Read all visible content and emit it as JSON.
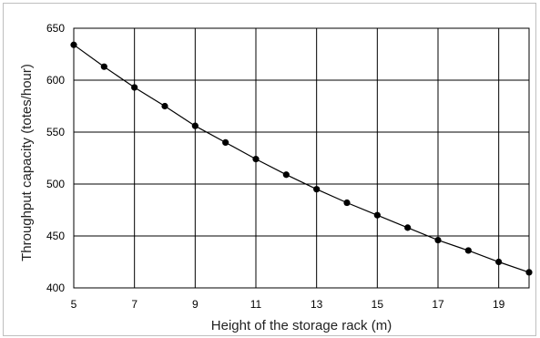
{
  "chart_data": {
    "type": "line",
    "title": "",
    "xlabel": "Height of the storage rack (m)",
    "ylabel": "Throughput capacity (totes/hour)",
    "xlim": [
      5,
      20
    ],
    "ylim": [
      400,
      650
    ],
    "x_ticks": [
      5,
      7,
      9,
      11,
      13,
      15,
      17,
      19
    ],
    "y_ticks": [
      400,
      450,
      500,
      550,
      600,
      650
    ],
    "grid": true,
    "legend": "none",
    "line_color": "#000000",
    "marker_color": "#000000",
    "series": [
      {
        "x": [
          5,
          6,
          7,
          8,
          9,
          10,
          11,
          12,
          13,
          14,
          15,
          16,
          17,
          18,
          19,
          20
        ],
        "values": [
          634,
          613,
          593,
          575,
          556,
          540,
          524,
          509,
          495,
          482,
          470,
          458,
          446,
          436,
          425,
          415
        ]
      }
    ]
  }
}
